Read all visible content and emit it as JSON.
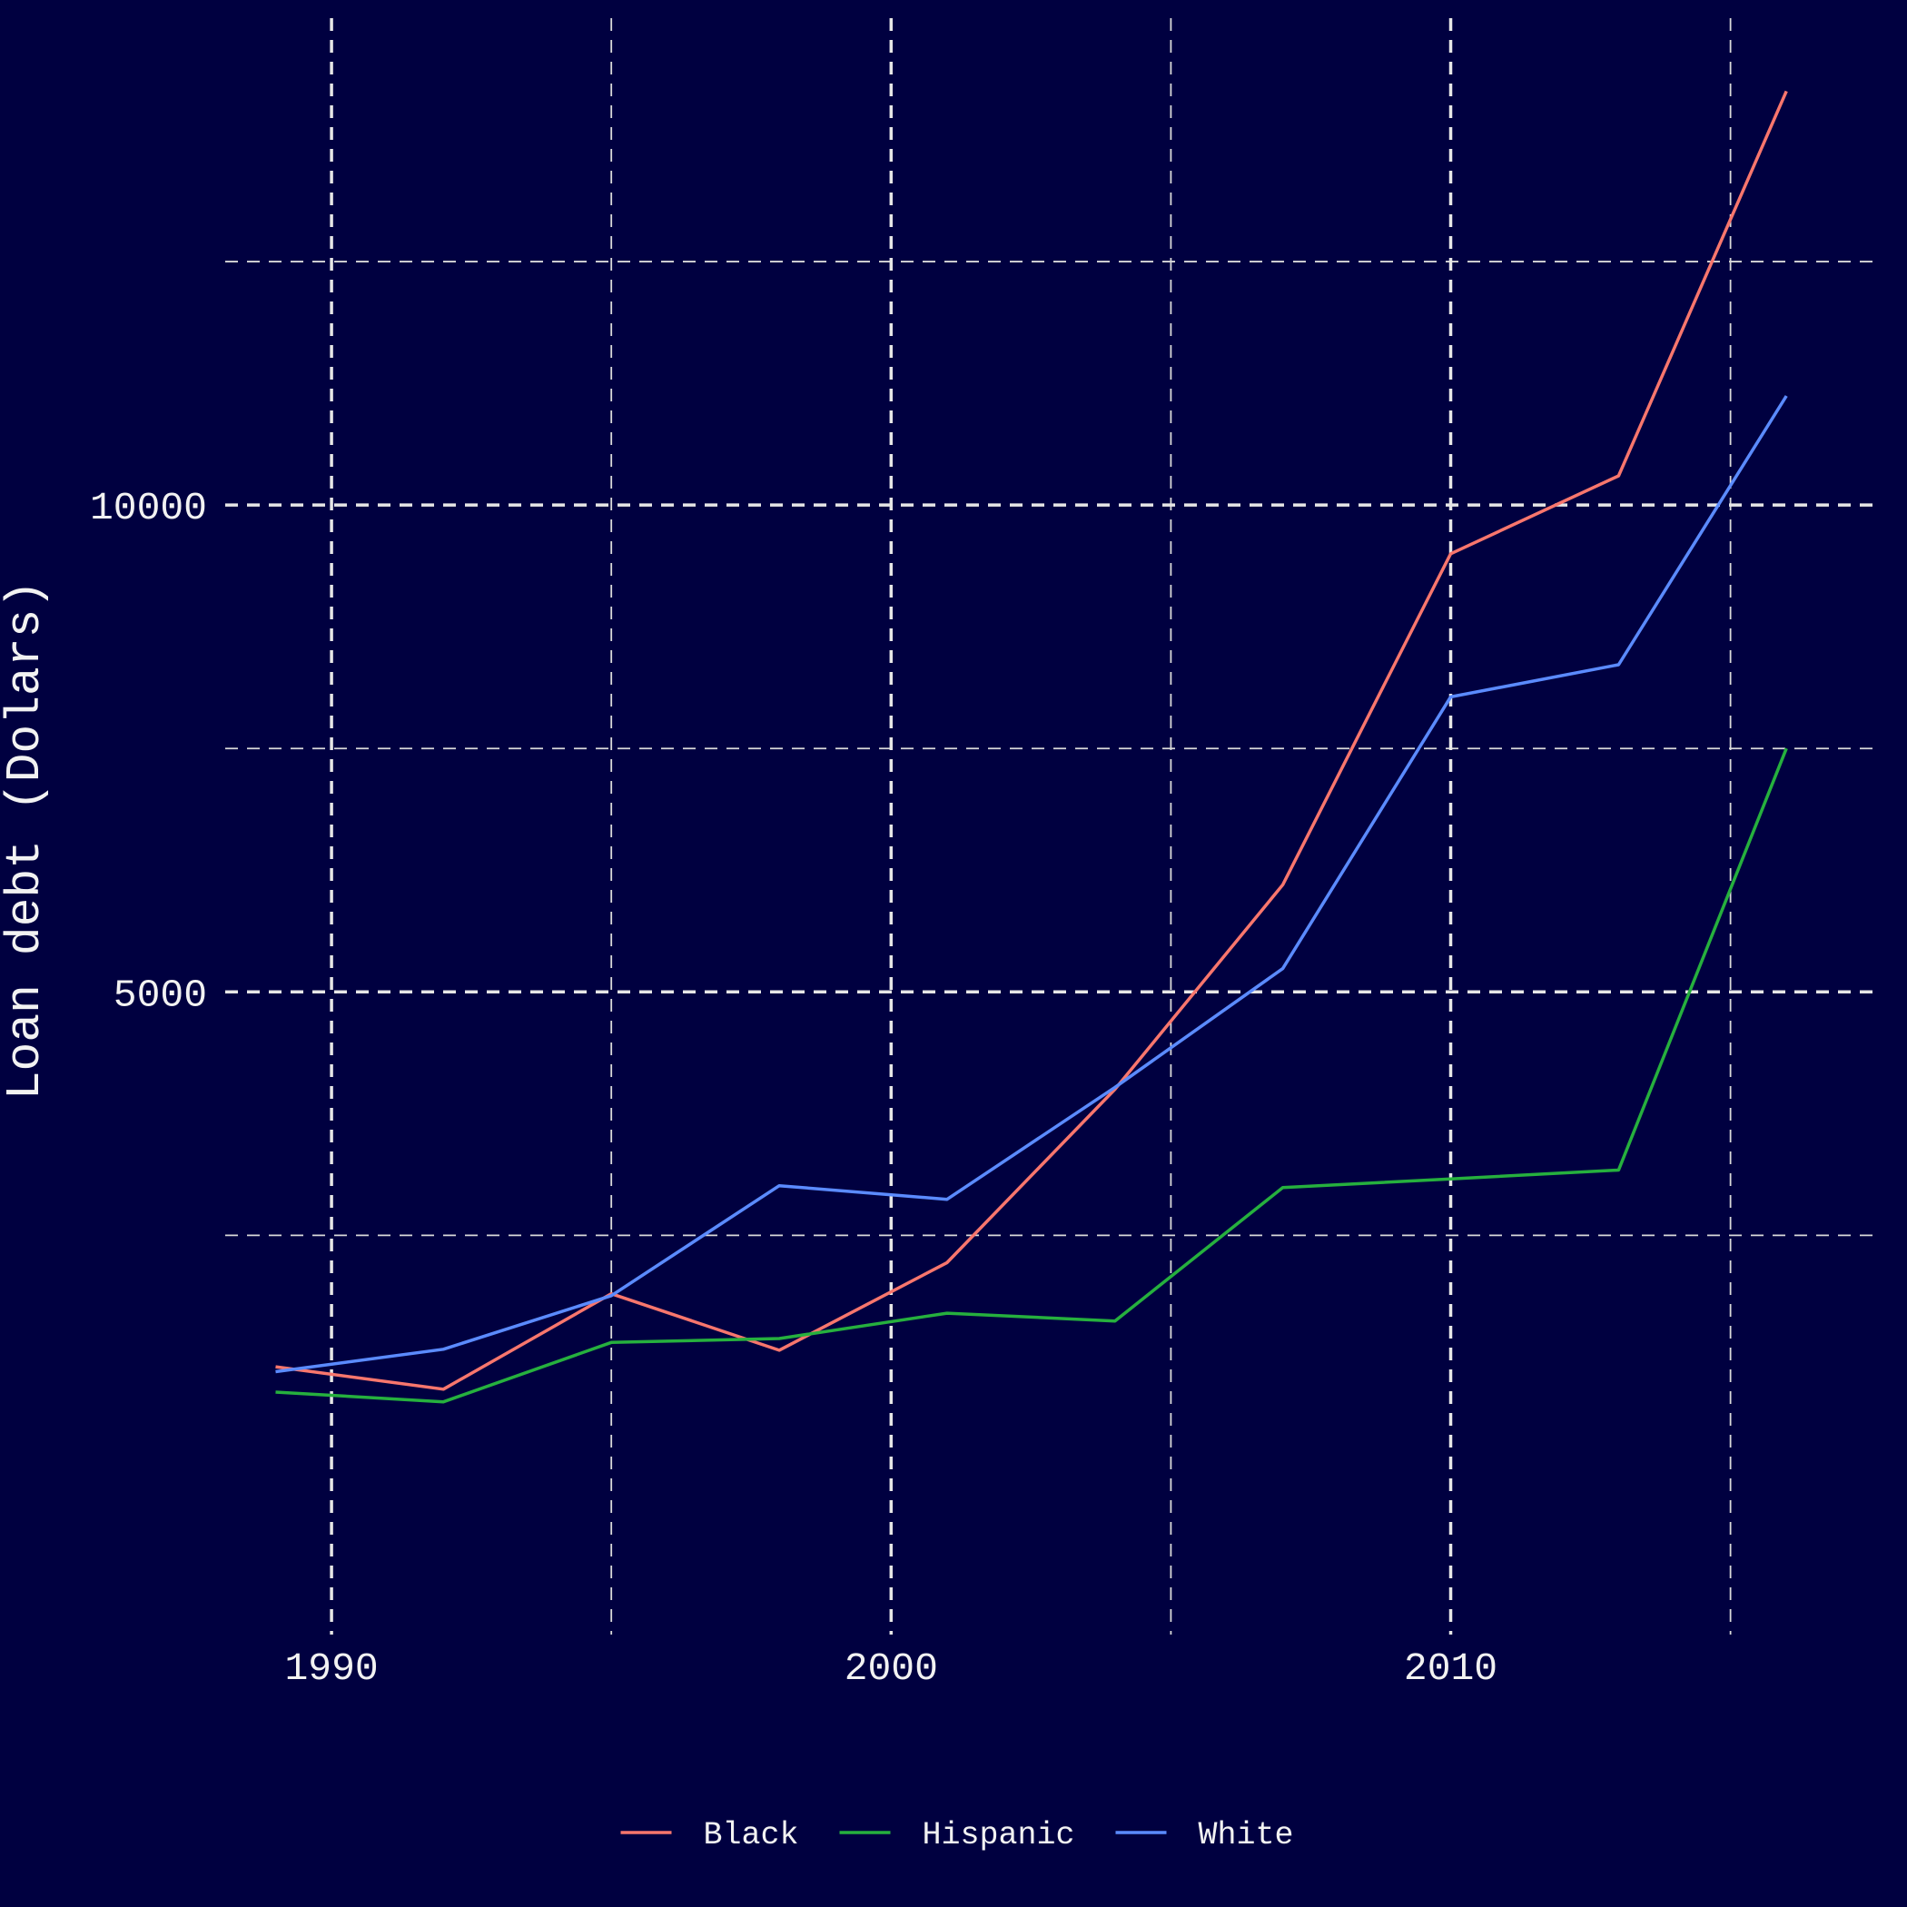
{
  "chart_data": {
    "type": "line",
    "title": "",
    "xlabel": "",
    "ylabel": "Loan debt (Dolars)",
    "xlim": [
      1988.1,
      2017.7
    ],
    "ylim": [
      -1600,
      15000
    ],
    "x_ticks": [
      1990,
      2000,
      2010
    ],
    "y_ticks": [
      5000,
      10000
    ],
    "x_minor": [
      1995,
      2005,
      2015
    ],
    "y_minor": [
      2500,
      7500,
      12500
    ],
    "grid": true,
    "legend_position": "bottom",
    "series": [
      {
        "name": "Black",
        "color": "#f8766d",
        "x": [
          1989,
          1992,
          1995,
          1998,
          2001,
          2004,
          2007,
          2010,
          2013,
          2016
        ],
        "y": [
          1150,
          920,
          1900,
          1320,
          2220,
          4000,
          6100,
          9500,
          10300,
          14250
        ]
      },
      {
        "name": "Hispanic",
        "color": "#26b03e",
        "x": [
          1989,
          1992,
          1995,
          1998,
          2001,
          2004,
          2007,
          2010,
          2013,
          2016
        ],
        "y": [
          890,
          790,
          1400,
          1440,
          1700,
          1620,
          2990,
          3080,
          3170,
          7500
        ]
      },
      {
        "name": "White",
        "color": "#5b8bff",
        "x": [
          1989,
          1992,
          1995,
          1998,
          2001,
          2004,
          2007,
          2010,
          2013,
          2016
        ],
        "y": [
          1100,
          1330,
          1880,
          3010,
          2870,
          4020,
          5240,
          8030,
          8360,
          11120
        ]
      }
    ]
  }
}
